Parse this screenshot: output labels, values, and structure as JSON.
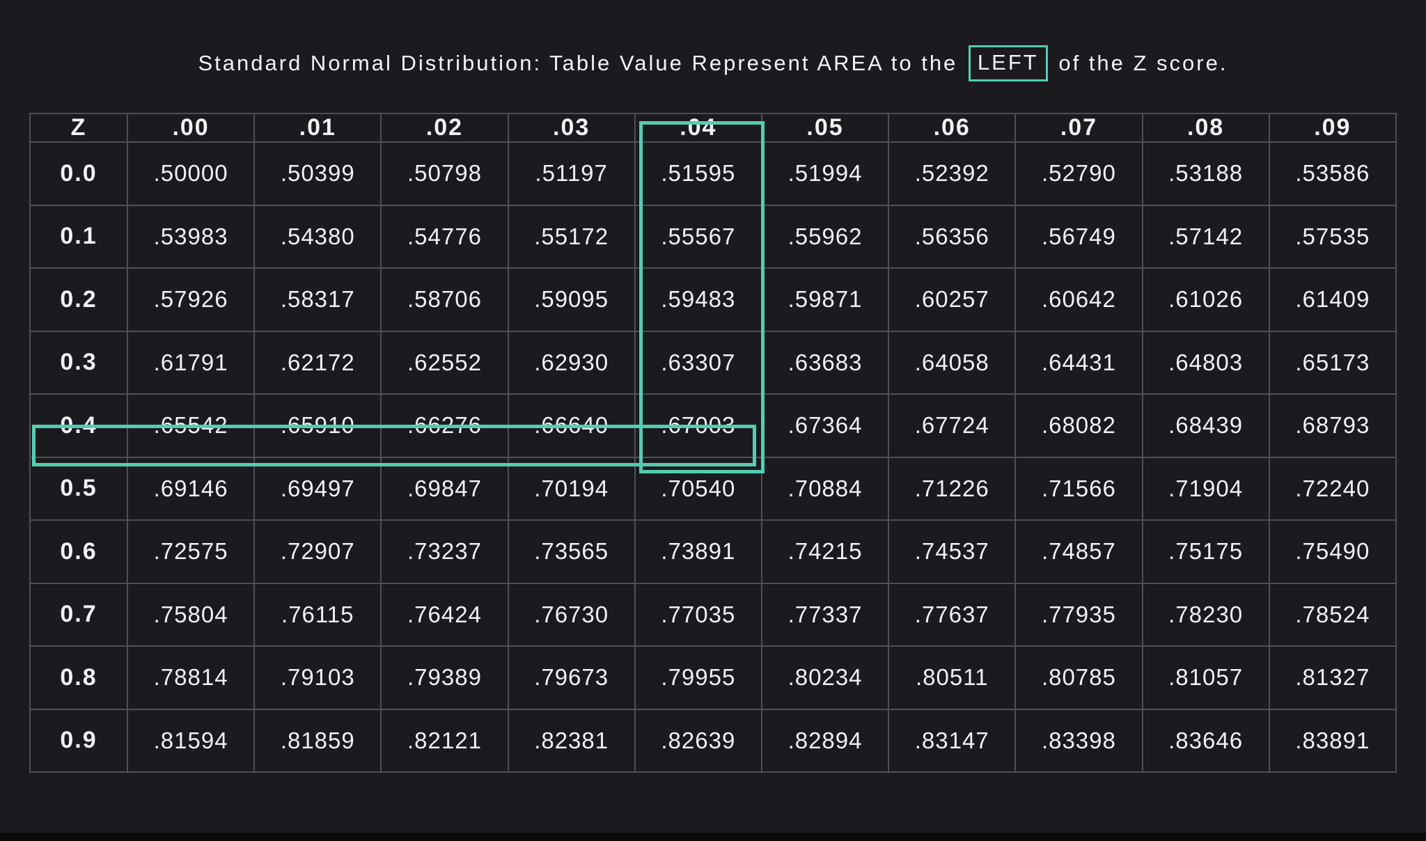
{
  "title": {
    "prefix": "Standard Normal Distribution: Table Value Represent AREA to the ",
    "highlighted_word": "LEFT",
    "suffix": " of the Z score."
  },
  "colors": {
    "background": "#1B1A1F",
    "accent": "#53CDB2",
    "grid_line": "#504F56",
    "text": "#F2F2F4",
    "bottom_bar": "#0A0A0C"
  },
  "chart_data": {
    "type": "table",
    "title": "Standard Normal Distribution: Table Value Represent AREA to the LEFT of the Z score.",
    "columns": [
      "Z",
      ".00",
      ".01",
      ".02",
      ".03",
      ".04",
      ".05",
      ".06",
      ".07",
      ".08",
      ".09"
    ],
    "rows": [
      {
        "z": "0.0",
        "values": [
          ".50000",
          ".50399",
          ".50798",
          ".51197",
          ".51595",
          ".51994",
          ".52392",
          ".52790",
          ".53188",
          ".53586"
        ]
      },
      {
        "z": "0.1",
        "values": [
          ".53983",
          ".54380",
          ".54776",
          ".55172",
          ".55567",
          ".55962",
          ".56356",
          ".56749",
          ".57142",
          ".57535"
        ]
      },
      {
        "z": "0.2",
        "values": [
          ".57926",
          ".58317",
          ".58706",
          ".59095",
          ".59483",
          ".59871",
          ".60257",
          ".60642",
          ".61026",
          ".61409"
        ]
      },
      {
        "z": "0.3",
        "values": [
          ".61791",
          ".62172",
          ".62552",
          ".62930",
          ".63307",
          ".63683",
          ".64058",
          ".64431",
          ".64803",
          ".65173"
        ]
      },
      {
        "z": "0.4",
        "values": [
          ".65542",
          ".65910",
          ".66276",
          ".66640",
          ".67003",
          ".67364",
          ".67724",
          ".68082",
          ".68439",
          ".68793"
        ]
      },
      {
        "z": "0.5",
        "values": [
          ".69146",
          ".69497",
          ".69847",
          ".70194",
          ".70540",
          ".70884",
          ".71226",
          ".71566",
          ".71904",
          ".72240"
        ]
      },
      {
        "z": "0.6",
        "values": [
          ".72575",
          ".72907",
          ".73237",
          ".73565",
          ".73891",
          ".74215",
          ".74537",
          ".74857",
          ".75175",
          ".75490"
        ]
      },
      {
        "z": "0.7",
        "values": [
          ".75804",
          ".76115",
          ".76424",
          ".76730",
          ".77035",
          ".77337",
          ".77637",
          ".77935",
          ".78230",
          ".78524"
        ]
      },
      {
        "z": "0.8",
        "values": [
          ".78814",
          ".79103",
          ".79389",
          ".79673",
          ".79955",
          ".80234",
          ".80511",
          ".80785",
          ".81057",
          ".81327"
        ]
      },
      {
        "z": "0.9",
        "values": [
          ".81594",
          ".81859",
          ".82121",
          ".82381",
          ".82639",
          ".82894",
          ".83147",
          ".83398",
          ".83646",
          ".83891"
        ]
      }
    ],
    "highlight": {
      "column": ".04",
      "row": "0.4",
      "intersection_value": ".67003",
      "highlighted_title_word": "LEFT"
    },
    "layout": {
      "grid": true,
      "legend": "none"
    }
  }
}
